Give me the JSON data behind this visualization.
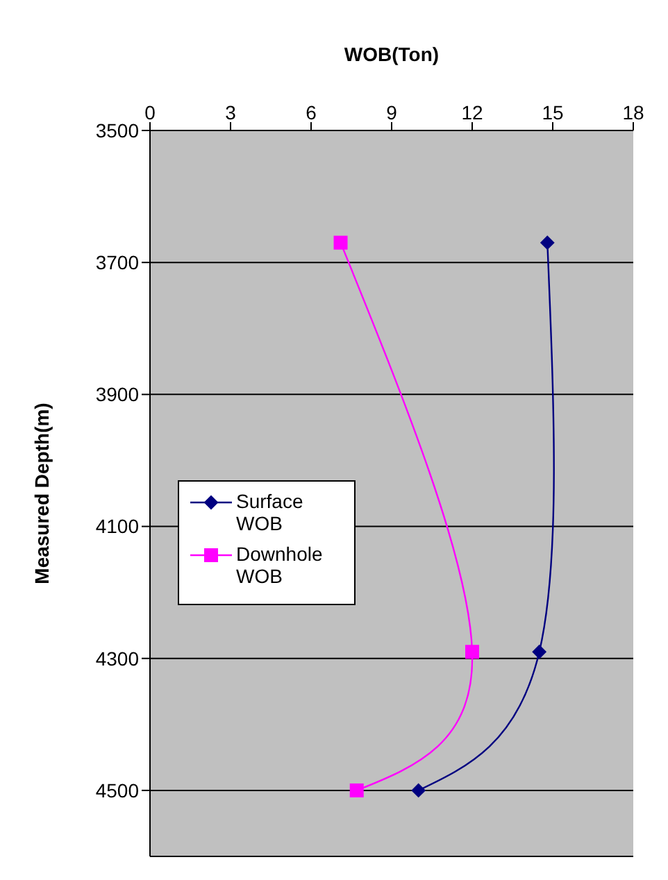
{
  "chart_data": {
    "type": "line",
    "xlabel": "WOB(Ton)",
    "ylabel": "Measured Depth(m)",
    "xlim": [
      0,
      18
    ],
    "xticks": [
      0,
      3,
      6,
      9,
      12,
      15,
      18
    ],
    "ylim": [
      4600,
      3500
    ],
    "yticks": [
      3500,
      3700,
      3900,
      4100,
      4300,
      4500
    ],
    "grid": "y",
    "legend": "left",
    "series": [
      {
        "name": "Surface WOB",
        "color": "#000080",
        "marker": "diamond",
        "x": [
          14.8,
          14.5,
          10
        ],
        "values": [
          3670,
          4290,
          4500
        ]
      },
      {
        "name": "Downhole WOB",
        "color": "#ff00ff",
        "marker": "square",
        "x": [
          7.1,
          12,
          7.7
        ],
        "values": [
          3670,
          4290,
          4500
        ]
      }
    ]
  }
}
